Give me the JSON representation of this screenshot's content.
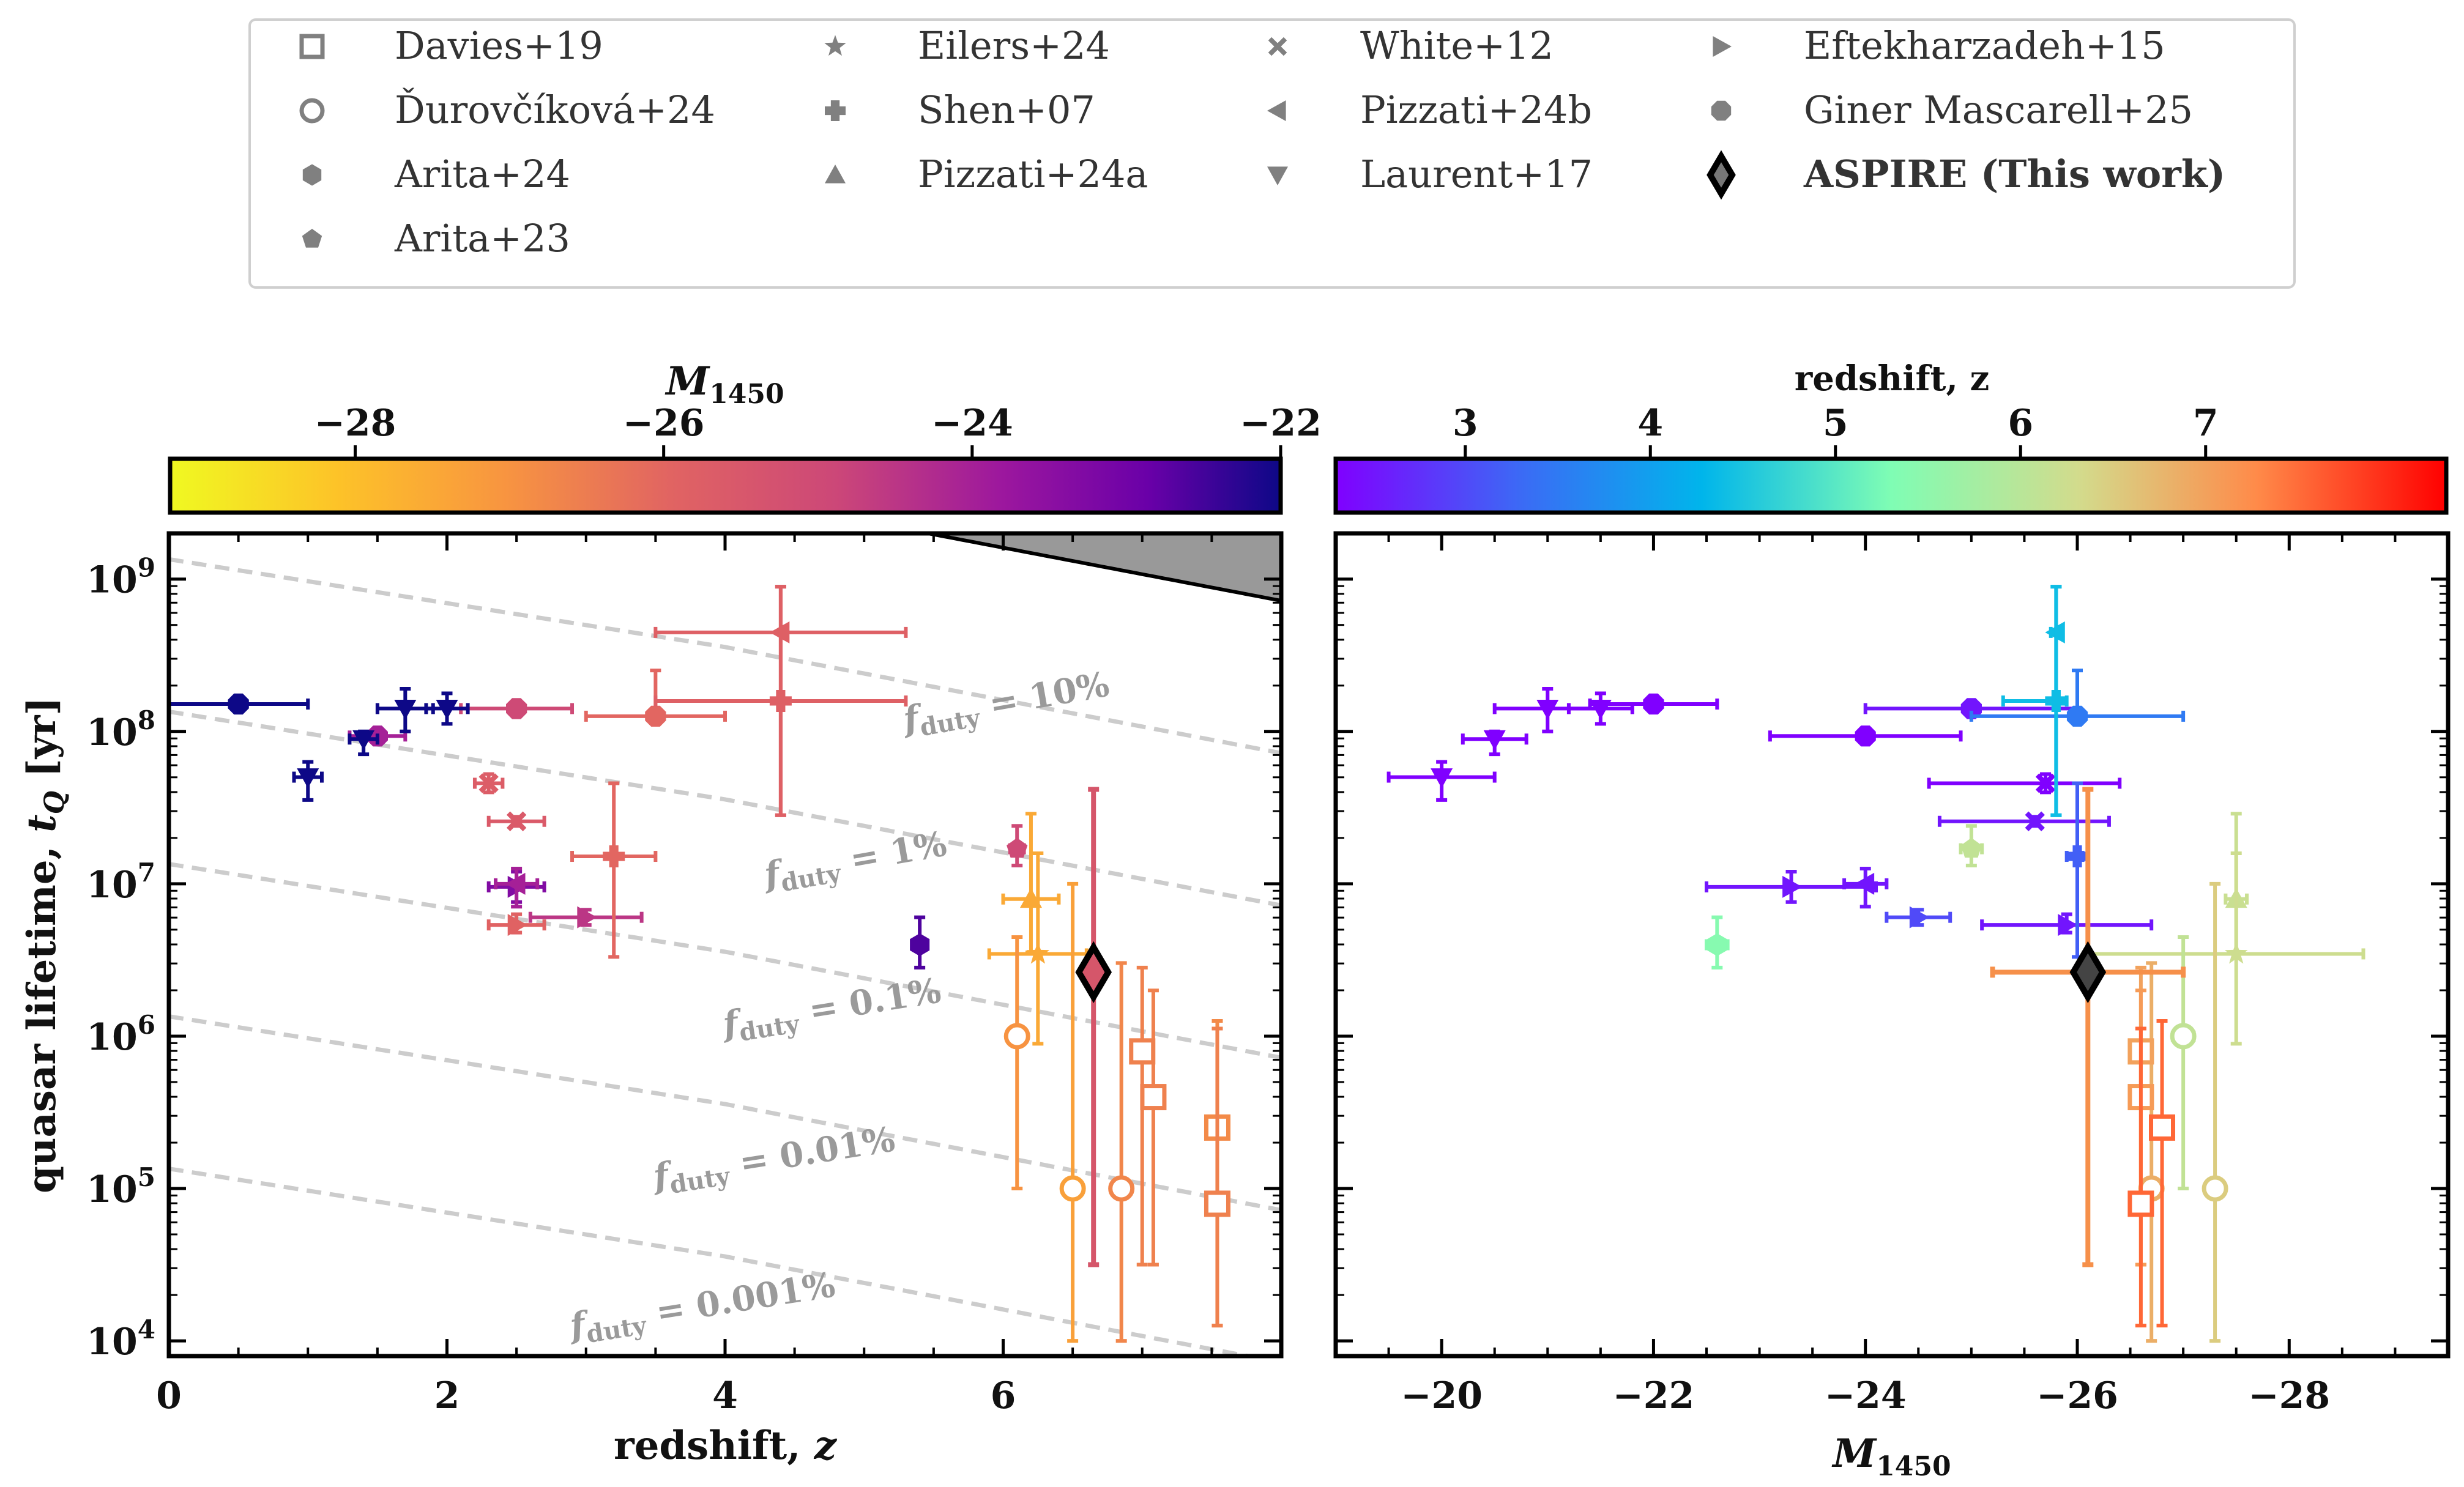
{
  "legend": {
    "entries": [
      {
        "label": "Davies+19",
        "marker": "square-open"
      },
      {
        "label": "Ďurovčíková+24",
        "marker": "circle-open"
      },
      {
        "label": "Arita+24",
        "marker": "hexagon"
      },
      {
        "label": "Arita+23",
        "marker": "pentagon"
      },
      {
        "label": "Eilers+24",
        "marker": "star"
      },
      {
        "label": "Shen+07",
        "marker": "plus"
      },
      {
        "label": "Pizzati+24a",
        "marker": "triangle-up"
      },
      {
        "label": "White+12",
        "marker": "x"
      },
      {
        "label": "Pizzati+24b",
        "marker": "triangle-left"
      },
      {
        "label": "Laurent+17",
        "marker": "triangle-down"
      },
      {
        "label": "Eftekharzadeh+15",
        "marker": "triangle-right"
      },
      {
        "label": "Giner Mascarell+25",
        "marker": "octagon"
      },
      {
        "label": "ASPIRE (This work)",
        "marker": "diamond"
      }
    ]
  },
  "colorbars": {
    "left": {
      "title": "M1450",
      "ticks": [
        "−28",
        "−26",
        "−24",
        "−22"
      ]
    },
    "right": {
      "title": "redshift,  z",
      "ticks": [
        "3",
        "4",
        "5",
        "6",
        "7"
      ]
    }
  },
  "chart_data": [
    {
      "type": "scatter",
      "panel": "left",
      "xlabel": "redshift,  z",
      "ylabel": "quasar lifetime,  tQ [yr]",
      "xlim": [
        0,
        8.0
      ],
      "ylim_log10": [
        3.9,
        9.3
      ],
      "x_ticks": [
        "0",
        "2",
        "4",
        "6"
      ],
      "y_ticks": [
        "10^4",
        "10^5",
        "10^6",
        "10^7",
        "10^8",
        "10^9"
      ],
      "duty_cycle_labels": [
        "fduty = 10%",
        "fduty = 1%",
        "fduty = 0.1%",
        "fduty = 0.01%",
        "fduty = 0.001%"
      ],
      "duty_cycle_fractions": [
        0.1,
        0.01,
        0.001,
        0.0001,
        1e-05
      ],
      "excluded_region": "shaded gray above upper-limit curve (age of Universe)",
      "color_by": "M1450 (plasma_r, -29 to -22)"
    },
    {
      "type": "scatter",
      "panel": "right",
      "xlabel": "M1450",
      "xlim": [
        -19,
        -29.5
      ],
      "x_ticks": [
        "−20",
        "−22",
        "−24",
        "−26",
        "−28"
      ],
      "ylim_log10": [
        3.9,
        9.3
      ],
      "color_by": "redshift z (rainbow, 2.5 to 8.3)"
    }
  ],
  "points": [
    {
      "ref": "Giner Mascarell+25",
      "marker": "octagon",
      "z": 0.5,
      "zerr": [
        0.5,
        0.5
      ],
      "M": -22.0,
      "Merr": [
        0.6,
        0.6
      ],
      "logt": 8.18,
      "ylo": 8.18,
      "yhi": 8.18
    },
    {
      "ref": "Giner Mascarell+25",
      "marker": "octagon",
      "z": 1.5,
      "zerr": [
        0.2,
        0.2
      ],
      "M": -24.0,
      "Merr": [
        0.9,
        0.9
      ],
      "logt": 7.97,
      "ylo": 7.97,
      "yhi": 7.97
    },
    {
      "ref": "Giner Mascarell+25",
      "marker": "octagon",
      "z": 2.5,
      "zerr": [
        0.4,
        0.4
      ],
      "M": -25.0,
      "Merr": [
        1.0,
        1.0
      ],
      "logt": 8.15,
      "ylo": 8.15,
      "yhi": 8.15
    },
    {
      "ref": "Giner Mascarell+25",
      "marker": "octagon",
      "z": 3.5,
      "zerr": [
        0.5,
        0.5
      ],
      "M": -26.0,
      "Merr": [
        1.0,
        1.0
      ],
      "logt": 8.1,
      "ylo": 8.1,
      "yhi": 8.4
    },
    {
      "ref": "Laurent+17",
      "marker": "triangle-down",
      "z": 1.0,
      "zerr": [
        0.1,
        0.1
      ],
      "M": -20.0,
      "Merr": [
        0.5,
        0.5
      ],
      "logt": 7.7,
      "ylo": 7.55,
      "yhi": 7.8
    },
    {
      "ref": "Laurent+17",
      "marker": "triangle-down",
      "z": 1.4,
      "zerr": [
        0.1,
        0.1
      ],
      "M": -20.5,
      "Merr": [
        0.3,
        0.3
      ],
      "logt": 7.95,
      "ylo": 7.85,
      "yhi": 8.0
    },
    {
      "ref": "Laurent+17",
      "marker": "triangle-down",
      "z": 1.7,
      "zerr": [
        0.2,
        0.2
      ],
      "M": -21.0,
      "Merr": [
        0.5,
        0.5
      ],
      "logt": 8.15,
      "ylo": 8.0,
      "yhi": 8.28
    },
    {
      "ref": "Laurent+17",
      "marker": "triangle-down",
      "z": 2.0,
      "zerr": [
        0.15,
        0.15
      ],
      "M": -21.5,
      "Merr": [
        0.3,
        0.3
      ],
      "logt": 8.15,
      "ylo": 8.05,
      "yhi": 8.25
    },
    {
      "ref": "Eftekharzadeh+15",
      "marker": "triangle-right",
      "z": 2.5,
      "zerr": [
        0.2,
        0.2
      ],
      "M": -23.3,
      "Merr": [
        0.8,
        0.8
      ],
      "logt": 6.98,
      "ylo": 6.88,
      "yhi": 7.08
    },
    {
      "ref": "Eftekharzadeh+15",
      "marker": "triangle-right",
      "z": 3.0,
      "zerr": [
        0.4,
        0.4
      ],
      "M": -24.5,
      "Merr": [
        0.3,
        0.3
      ],
      "logt": 6.78,
      "ylo": 6.73,
      "yhi": 6.83
    },
    {
      "ref": "Eftekharzadeh+15",
      "marker": "triangle-right",
      "z": 2.5,
      "zerr": [
        0.2,
        0.2
      ],
      "M": -25.9,
      "Merr": [
        0.8,
        0.8
      ],
      "logt": 6.73,
      "ylo": 6.68,
      "yhi": 6.8
    },
    {
      "ref": "Pizzati+24b",
      "marker": "triangle-left",
      "z": 2.5,
      "zerr": [
        0.15,
        0.15
      ],
      "M": -24.0,
      "Merr": [
        0.2,
        0.2
      ],
      "logt": 7.0,
      "ylo": 6.85,
      "yhi": 7.1
    },
    {
      "ref": "Pizzati+24b",
      "marker": "triangle-left",
      "z": 4.4,
      "zerr": [
        0.9,
        0.9
      ],
      "M": -25.8,
      "Merr": [
        0.05,
        0.05
      ],
      "logt": 8.65,
      "ylo": 7.45,
      "yhi": 8.95
    },
    {
      "ref": "White+12",
      "marker": "x",
      "z": 2.3,
      "zerr": [
        0.1,
        0.1
      ],
      "M": -25.7,
      "Merr": [
        1.1,
        0.7
      ],
      "logt": 7.66,
      "ylo": 7.6,
      "yhi": 7.72
    },
    {
      "ref": "White+12",
      "marker": "x",
      "z": 2.5,
      "zerr": [
        0.2,
        0.2
      ],
      "M": -25.6,
      "Merr": [
        0.9,
        0.7
      ],
      "logt": 7.41,
      "ylo": 7.38,
      "yhi": 7.44
    },
    {
      "ref": "Shen+07",
      "marker": "plus",
      "z": 3.2,
      "zerr": [
        0.3,
        0.3
      ],
      "M": -26.0,
      "Merr": [
        0.1,
        0.05
      ],
      "logt": 7.18,
      "ylo": 6.52,
      "yhi": 7.66
    },
    {
      "ref": "Shen+07",
      "marker": "plus",
      "z": 4.4,
      "zerr": [
        0.9,
        0.9
      ],
      "M": -25.8,
      "Merr": [
        0.5,
        0.1
      ],
      "logt": 8.2,
      "ylo": 7.45,
      "yhi": 8.95
    },
    {
      "ref": "Arita+23",
      "marker": "pentagon",
      "z": 6.1,
      "zerr": [
        0.05,
        0.05
      ],
      "M": -25.0,
      "Merr": [
        0.1,
        0.1
      ],
      "logt": 7.23,
      "ylo": 7.12,
      "yhi": 7.38
    },
    {
      "ref": "Arita+24",
      "marker": "hexagon",
      "z": 5.4,
      "zerr": [
        0.02,
        0.02
      ],
      "M": -22.6,
      "Merr": [
        0.1,
        0.1
      ],
      "logt": 6.6,
      "ylo": 6.45,
      "yhi": 6.78
    },
    {
      "ref": "Pizzati+24a",
      "marker": "triangle-up",
      "z": 6.2,
      "zerr": [
        0.2,
        0.2
      ],
      "M": -27.5,
      "Merr": [
        0.1,
        0.1
      ],
      "logt": 6.9,
      "ylo": 6.55,
      "yhi": 7.46
    },
    {
      "ref": "Eilers+24",
      "marker": "star",
      "z": 6.25,
      "zerr": [
        0.35,
        0.35
      ],
      "M": -27.5,
      "Merr": [
        1.4,
        1.2
      ],
      "logt": 6.54,
      "ylo": 5.95,
      "yhi": 7.2
    },
    {
      "ref": "Ďurovčíková+24",
      "marker": "circle-open",
      "z": 6.1,
      "zerr": [
        0.05,
        0.05
      ],
      "M": -27.0,
      "Merr": [
        0.1,
        0.1
      ],
      "logt": 6.0,
      "ylo": 5.0,
      "yhi": 6.65
    },
    {
      "ref": "Ďurovčíková+24",
      "marker": "circle-open",
      "z": 6.5,
      "zerr": [
        0.05,
        0.05
      ],
      "M": -27.3,
      "Merr": [
        0.05,
        0.05
      ],
      "logt": 5.0,
      "ylo": 4.0,
      "yhi": 7.0
    },
    {
      "ref": "Ďurovčíková+24",
      "marker": "circle-open",
      "z": 6.85,
      "zerr": [
        0.05,
        0.05
      ],
      "M": -26.7,
      "Merr": [
        0.05,
        0.05
      ],
      "logt": 5.0,
      "ylo": 4.0,
      "yhi": 6.48
    },
    {
      "ref": "Davies+19",
      "marker": "square-open",
      "z": 7.0,
      "zerr": [
        0.05,
        0.05
      ],
      "M": -26.6,
      "Merr": [
        0.05,
        0.05
      ],
      "logt": 5.9,
      "ylo": 4.5,
      "yhi": 6.45
    },
    {
      "ref": "Davies+19",
      "marker": "square-open",
      "z": 7.08,
      "zerr": [
        0.05,
        0.05
      ],
      "M": -26.6,
      "Merr": [
        0.05,
        0.05
      ],
      "logt": 5.6,
      "ylo": 4.5,
      "yhi": 6.3
    },
    {
      "ref": "Davies+19",
      "marker": "square-open",
      "z": 7.54,
      "zerr": [
        0.03,
        0.03
      ],
      "M": -26.8,
      "Merr": [
        0.05,
        0.05
      ],
      "logt": 5.4,
      "ylo": 4.1,
      "yhi": 6.1
    },
    {
      "ref": "Davies+19",
      "marker": "square-open",
      "z": 7.54,
      "zerr": [
        0.03,
        0.03
      ],
      "M": -26.6,
      "Merr": [
        0.05,
        0.05
      ],
      "logt": 4.9,
      "ylo": 4.1,
      "yhi": 6.05
    },
    {
      "ref": "ASPIRE (This work)",
      "marker": "diamond",
      "z": 6.65,
      "zerr": [
        0.05,
        0.05
      ],
      "M": -26.1,
      "Merr": [
        0.9,
        0.9
      ],
      "logt": 6.42,
      "ylo": 4.5,
      "yhi": 7.62
    }
  ]
}
